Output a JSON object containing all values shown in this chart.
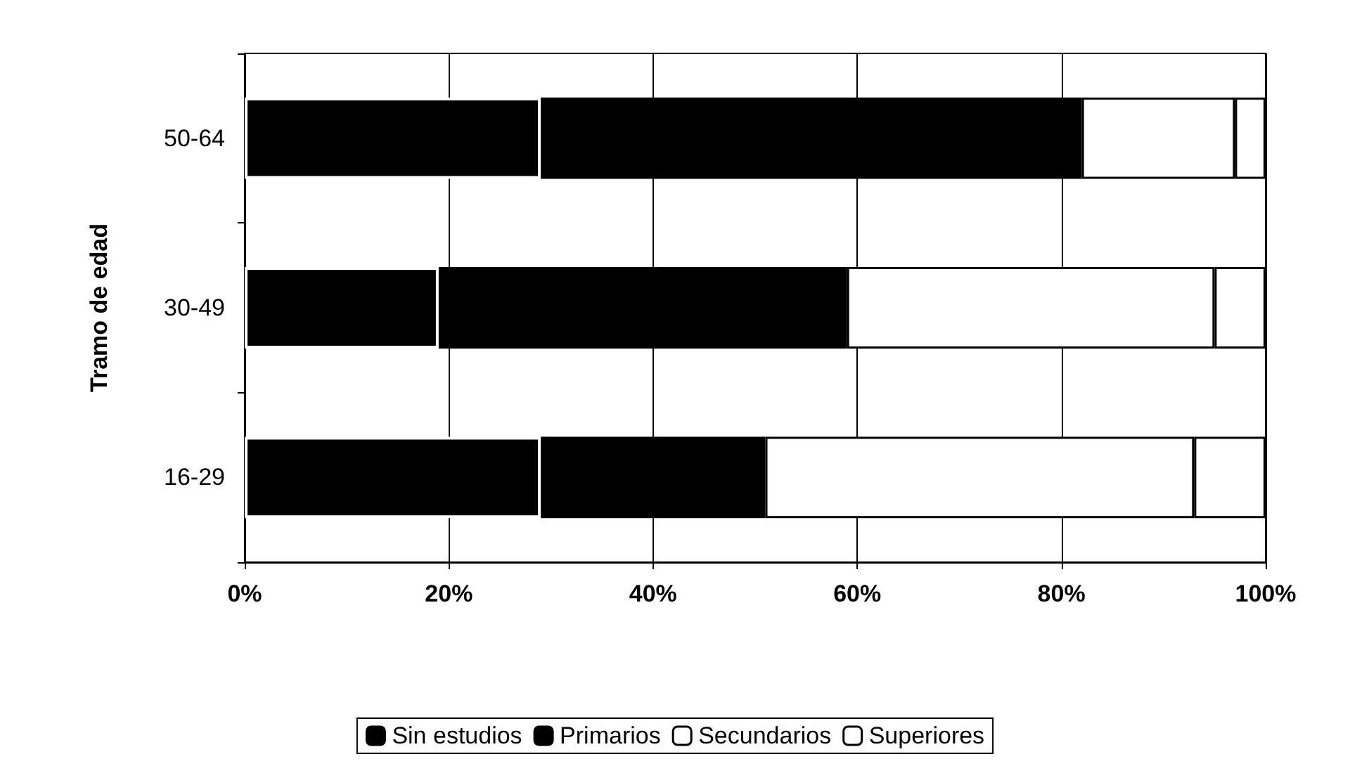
{
  "chart_data": {
    "type": "bar",
    "orientation": "horizontal",
    "stacked": true,
    "ylabel": "Tramo de edad",
    "categories": [
      "50-64",
      "30-49",
      "16-29"
    ],
    "series": [
      {
        "name": "Sin estudios",
        "color": "#000000",
        "values": [
          29,
          19,
          29
        ]
      },
      {
        "name": "Primarios",
        "color": "#000000",
        "values": [
          53,
          40,
          22
        ]
      },
      {
        "name": "Secundarios",
        "color": "#ffffff",
        "values": [
          15,
          36,
          42
        ]
      },
      {
        "name": "Superiores",
        "color": "#ffffff",
        "values": [
          3,
          5,
          7
        ]
      }
    ],
    "xlim": [
      0,
      100
    ],
    "xticks": [
      {
        "value": 0,
        "label": "0%"
      },
      {
        "value": 20,
        "label": "20%"
      },
      {
        "value": 40,
        "label": "40%"
      },
      {
        "value": 60,
        "label": "60%"
      },
      {
        "value": 80,
        "label": "80%"
      },
      {
        "value": 100,
        "label": "100%"
      }
    ],
    "grid": "x",
    "legend": "bottom"
  }
}
